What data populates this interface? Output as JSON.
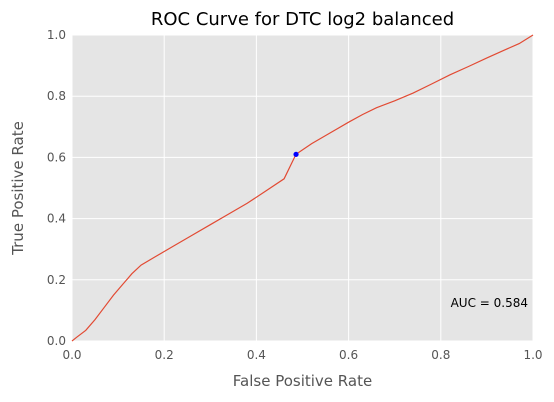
{
  "chart_data": {
    "type": "line",
    "title": "ROC Curve for DTC log2 balanced",
    "xlabel": "False Positive Rate",
    "ylabel": "True Positive Rate",
    "xlim": [
      0.0,
      1.0
    ],
    "ylim": [
      0.0,
      1.0
    ],
    "x_ticks": [
      "0.0",
      "0.2",
      "0.4",
      "0.6",
      "0.8",
      "1.0"
    ],
    "y_ticks": [
      "0.0",
      "0.2",
      "0.4",
      "0.6",
      "0.8",
      "1.0"
    ],
    "grid": true,
    "series": [
      {
        "color": "#e24a33",
        "x": [
          0.0,
          0.01,
          0.03,
          0.05,
          0.07,
          0.09,
          0.11,
          0.13,
          0.15,
          0.18,
          0.22,
          0.26,
          0.3,
          0.34,
          0.38,
          0.42,
          0.46,
          0.486,
          0.52,
          0.56,
          0.6,
          0.63,
          0.66,
          0.7,
          0.74,
          0.78,
          0.82,
          0.86,
          0.9,
          0.94,
          0.97,
          1.0
        ],
        "y": [
          0.0,
          0.012,
          0.035,
          0.07,
          0.11,
          0.15,
          0.185,
          0.22,
          0.248,
          0.275,
          0.31,
          0.345,
          0.38,
          0.415,
          0.45,
          0.49,
          0.53,
          0.61,
          0.645,
          0.68,
          0.715,
          0.74,
          0.762,
          0.785,
          0.81,
          0.84,
          0.87,
          0.897,
          0.925,
          0.952,
          0.972,
          1.0
        ]
      }
    ],
    "marker": {
      "x": 0.486,
      "y": 0.61,
      "color": "#0000ff"
    },
    "annotation": "AUC = 0.584",
    "colors": {
      "plot_background": "#e5e5e5",
      "grid": "#ffffff",
      "line": "#e24a33",
      "marker": "#0000ff"
    }
  }
}
